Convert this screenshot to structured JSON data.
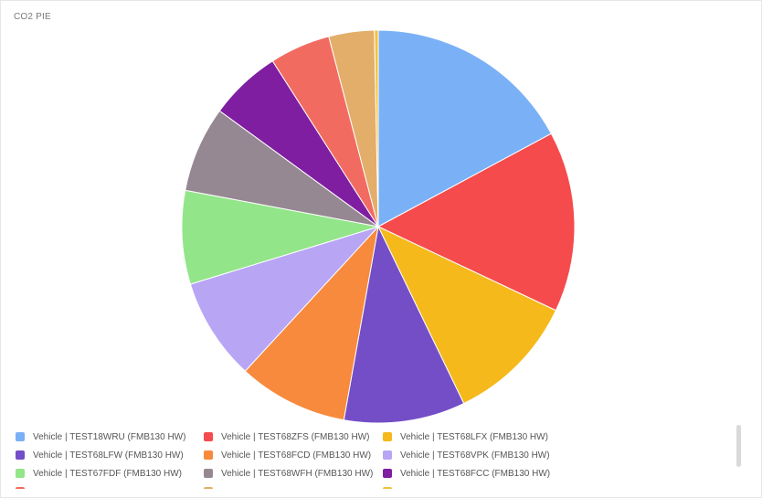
{
  "panel": {
    "title": "CO2 PIE"
  },
  "chart_data": {
    "type": "pie",
    "title": "CO2 PIE",
    "start_angle_deg": 0,
    "direction": "clockwise",
    "legend_position": "bottom",
    "slices": [
      {
        "label": "Vehicle | TEST18WRU (FMB130 HW)",
        "value": 16.5,
        "color": "#7AB1F6"
      },
      {
        "label": "Vehicle | TEST68ZFS (FMB130 HW)",
        "value": 14.3,
        "color": "#F54B4C"
      },
      {
        "label": "Vehicle | TEST68LFX (FMB130 HW)",
        "value": 10.4,
        "color": "#F5B91C"
      },
      {
        "label": "Vehicle | TEST68LFW (FMB130 HW)",
        "value": 9.6,
        "color": "#744EC7"
      },
      {
        "label": "Vehicle | TEST68FCD (FMB130 HW)",
        "value": 8.7,
        "color": "#F78A3D"
      },
      {
        "label": "Vehicle | TEST68VPK (FMB130 HW)",
        "value": 8.1,
        "color": "#B8A5F4"
      },
      {
        "label": "Vehicle | TEST67FDF (FMB130 HW)",
        "value": 7.4,
        "color": "#93E589"
      },
      {
        "label": "Vehicle | TEST68WFH (FMB130 HW)",
        "value": 6.8,
        "color": "#958892"
      },
      {
        "label": "Vehicle | TEST68FCC (FMB130 HW)",
        "value": 5.7,
        "color": "#7F1EA1"
      },
      {
        "label": "",
        "value": 4.8,
        "color": "#F26B61"
      },
      {
        "label": "",
        "value": 3.6,
        "color": "#E2AE6A"
      },
      {
        "label": "",
        "value": 0.3,
        "color": "#F5C03A"
      }
    ]
  }
}
